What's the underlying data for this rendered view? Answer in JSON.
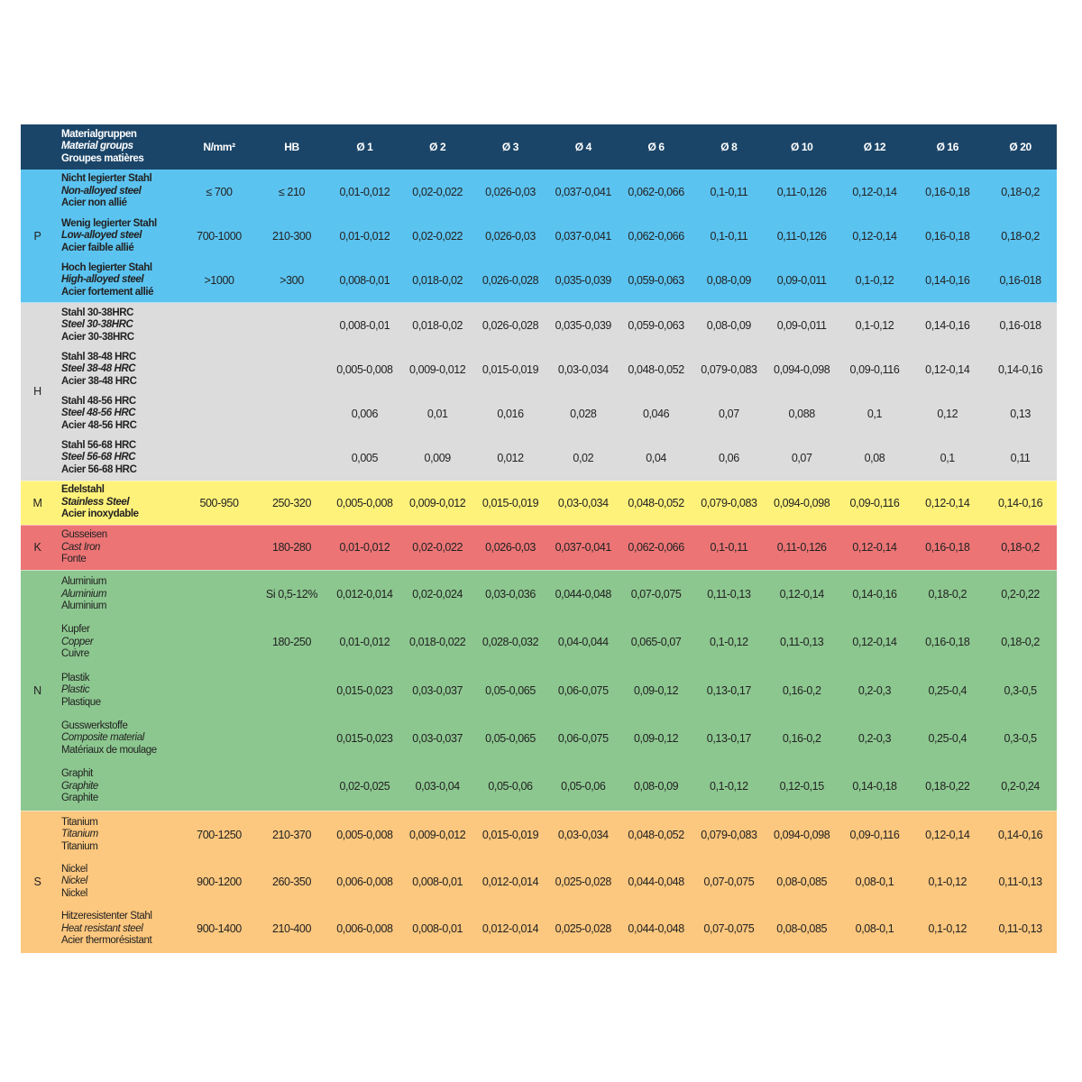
{
  "header": {
    "material": [
      "Materialgruppen",
      "Material groups",
      "Groupes matières"
    ],
    "strength": "N/mm²",
    "hardness": "HB",
    "diameters": [
      "Ø 1",
      "Ø 2",
      "Ø 3",
      "Ø 4",
      "Ø 6",
      "Ø 8",
      "Ø 10",
      "Ø 12",
      "Ø 16",
      "Ø 20"
    ]
  },
  "groups": [
    {
      "code": "P",
      "color": "#5bc3f0",
      "bold": true,
      "rows": [
        {
          "names": [
            "Nicht legierter Stahl",
            "Non-alloyed steel",
            "Acier non allié"
          ],
          "strength": "≤ 700",
          "hb": "≤ 210",
          "values": [
            "0,01-0,012",
            "0,02-0,022",
            "0,026-0,03",
            "0,037-0,041",
            "0,062-0,066",
            "0,1-0,11",
            "0,11-0,126",
            "0,12-0,14",
            "0,16-0,18",
            "0,18-0,2"
          ]
        },
        {
          "names": [
            "Wenig legierter Stahl",
            "Low-alloyed steel",
            "Acier faible allié"
          ],
          "strength": "700-1000",
          "hb": "210-300",
          "values": [
            "0,01-0,012",
            "0,02-0,022",
            "0,026-0,03",
            "0,037-0,041",
            "0,062-0,066",
            "0,1-0,11",
            "0,11-0,126",
            "0,12-0,14",
            "0,16-0,18",
            "0,18-0,2"
          ]
        },
        {
          "names": [
            "Hoch legierter Stahl",
            "High-alloyed steel",
            "Acier fortement allié"
          ],
          "strength": ">1000",
          "hb": ">300",
          "values": [
            "0,008-0,01",
            "0,018-0,02",
            "0,026-0,028",
            "0,035-0,039",
            "0,059-0,063",
            "0,08-0,09",
            "0,09-0,011",
            "0,1-0,12",
            "0,14-0,16",
            "0,16-018"
          ]
        }
      ]
    },
    {
      "code": "H",
      "color": "#dcdcdc",
      "bold": true,
      "rows": [
        {
          "names": [
            "Stahl 30-38HRC",
            "Steel 30-38HRC",
            "Acier 30-38HRC"
          ],
          "strength": "",
          "hb": "",
          "values": [
            "0,008-0,01",
            "0,018-0,02",
            "0,026-0,028",
            "0,035-0,039",
            "0,059-0,063",
            "0,08-0,09",
            "0,09-0,011",
            "0,1-0,12",
            "0,14-0,16",
            "0,16-018"
          ]
        },
        {
          "names": [
            "Stahl 38-48 HRC",
            "Steel 38-48 HRC",
            "Acier 38-48 HRC"
          ],
          "strength": "",
          "hb": "",
          "values": [
            "0,005-0,008",
            "0,009-0,012",
            "0,015-0,019",
            "0,03-0,034",
            "0,048-0,052",
            "0,079-0,083",
            "0,094-0,098",
            "0,09-0,116",
            "0,12-0,14",
            "0,14-0,16"
          ]
        },
        {
          "names": [
            "Stahl 48-56 HRC",
            "Steel 48-56 HRC",
            "Acier 48-56 HRC"
          ],
          "strength": "",
          "hb": "",
          "values": [
            "0,006",
            "0,01",
            "0,016",
            "0,028",
            "0,046",
            "0,07",
            "0,088",
            "0,1",
            "0,12",
            "0,13"
          ]
        },
        {
          "names": [
            "Stahl 56-68 HRC",
            "Steel 56-68 HRC",
            "Acier 56-68 HRC"
          ],
          "strength": "",
          "hb": "",
          "values": [
            "0,005",
            "0,009",
            "0,012",
            "0,02",
            "0,04",
            "0,06",
            "0,07",
            "0,08",
            "0,1",
            "0,11"
          ]
        }
      ]
    },
    {
      "code": "M",
      "color": "#fff27a",
      "bold": true,
      "rows": [
        {
          "names": [
            "Edelstahl",
            "Stainless Steel",
            "Acier inoxydable"
          ],
          "strength": "500-950",
          "hb": "250-320",
          "values": [
            "0,005-0,008",
            "0,009-0,012",
            "0,015-0,019",
            "0,03-0,034",
            "0,048-0,052",
            "0,079-0,083",
            "0,094-0,098",
            "0,09-0,116",
            "0,12-0,14",
            "0,14-0,16"
          ]
        }
      ]
    },
    {
      "code": "K",
      "color": "#ec7475",
      "bold": false,
      "rows": [
        {
          "names": [
            "Gusseisen",
            "Cast Iron",
            "Fonte"
          ],
          "strength": "",
          "hb": "180-280",
          "values": [
            "0,01-0,012",
            "0,02-0,022",
            "0,026-0,03",
            "0,037-0,041",
            "0,062-0,066",
            "0,1-0,11",
            "0,11-0,126",
            "0,12-0,14",
            "0,16-0,18",
            "0,18-0,2"
          ]
        }
      ]
    },
    {
      "code": "N",
      "color": "#8cc78f",
      "bold": false,
      "rows": [
        {
          "names": [
            "Aluminium",
            "Aluminium",
            "Aluminium"
          ],
          "strength": "",
          "hb": "Si 0,5-12%",
          "values": [
            "0,012-0,014",
            "0,02-0,024",
            "0,03-0,036",
            "0,044-0,048",
            "0,07-0,075",
            "0,11-0,13",
            "0,12-0,14",
            "0,14-0,16",
            "0,18-0,2",
            "0,2-0,22"
          ]
        },
        {
          "names": [
            "Kupfer",
            "Copper",
            "Cuivre"
          ],
          "strength": "",
          "hb": "180-250",
          "values": [
            "0,01-0,012",
            "0,018-0,022",
            "0,028-0,032",
            "0,04-0,044",
            "0,065-0,07",
            "0,1-0,12",
            "0,11-0,13",
            "0,12-0,14",
            "0,16-0,18",
            "0,18-0,2"
          ]
        },
        {
          "names": [
            "Plastik",
            "Plastic",
            "Plastique"
          ],
          "strength": "",
          "hb": "",
          "values": [
            "0,015-0,023",
            "0,03-0,037",
            "0,05-0,065",
            "0,06-0,075",
            "0,09-0,12",
            "0,13-0,17",
            "0,16-0,2",
            "0,2-0,3",
            "0,25-0,4",
            "0,3-0,5"
          ]
        },
        {
          "names": [
            "Gusswerkstoffe",
            "Composite material",
            "Matériaux de moulage"
          ],
          "strength": "",
          "hb": "",
          "values": [
            "0,015-0,023",
            "0,03-0,037",
            "0,05-0,065",
            "0,06-0,075",
            "0,09-0,12",
            "0,13-0,17",
            "0,16-0,2",
            "0,2-0,3",
            "0,25-0,4",
            "0,3-0,5"
          ]
        },
        {
          "names": [
            "Graphit",
            "Graphite",
            "Graphite"
          ],
          "strength": "",
          "hb": "",
          "values": [
            "0,02-0,025",
            "0,03-0,04",
            "0,05-0,06",
            "0,05-0,06",
            "0,08-0,09",
            "0,1-0,12",
            "0,12-0,15",
            "0,14-0,18",
            "0,18-0,22",
            "0,2-0,24"
          ]
        }
      ]
    },
    {
      "code": "S",
      "color": "#fcc77e",
      "bold": false,
      "rows": [
        {
          "names": [
            "Titanium",
            "Titanium",
            "Titanium"
          ],
          "strength": "700-1250",
          "hb": "210-370",
          "values": [
            "0,005-0,008",
            "0,009-0,012",
            "0,015-0,019",
            "0,03-0,034",
            "0,048-0,052",
            "0,079-0,083",
            "0,094-0,098",
            "0,09-0,116",
            "0,12-0,14",
            "0,14-0,16"
          ]
        },
        {
          "names": [
            "Nickel",
            "Nickel",
            "Nickel"
          ],
          "strength": "900-1200",
          "hb": "260-350",
          "values": [
            "0,006-0,008",
            "0,008-0,01",
            "0,012-0,014",
            "0,025-0,028",
            "0,044-0,048",
            "0,07-0,075",
            "0,08-0,085",
            "0,08-0,1",
            "0,1-0,12",
            "0,11-0,13"
          ]
        },
        {
          "names": [
            "Hitzeresistenter Stahl",
            "Heat resistant steel",
            "Acier thermorésistant"
          ],
          "strength": "900-1400",
          "hb": "210-400",
          "values": [
            "0,006-0,008",
            "0,008-0,01",
            "0,012-0,014",
            "0,025-0,028",
            "0,044-0,048",
            "0,07-0,075",
            "0,08-0,085",
            "0,08-0,1",
            "0,1-0,12",
            "0,11-0,13"
          ]
        }
      ]
    }
  ]
}
